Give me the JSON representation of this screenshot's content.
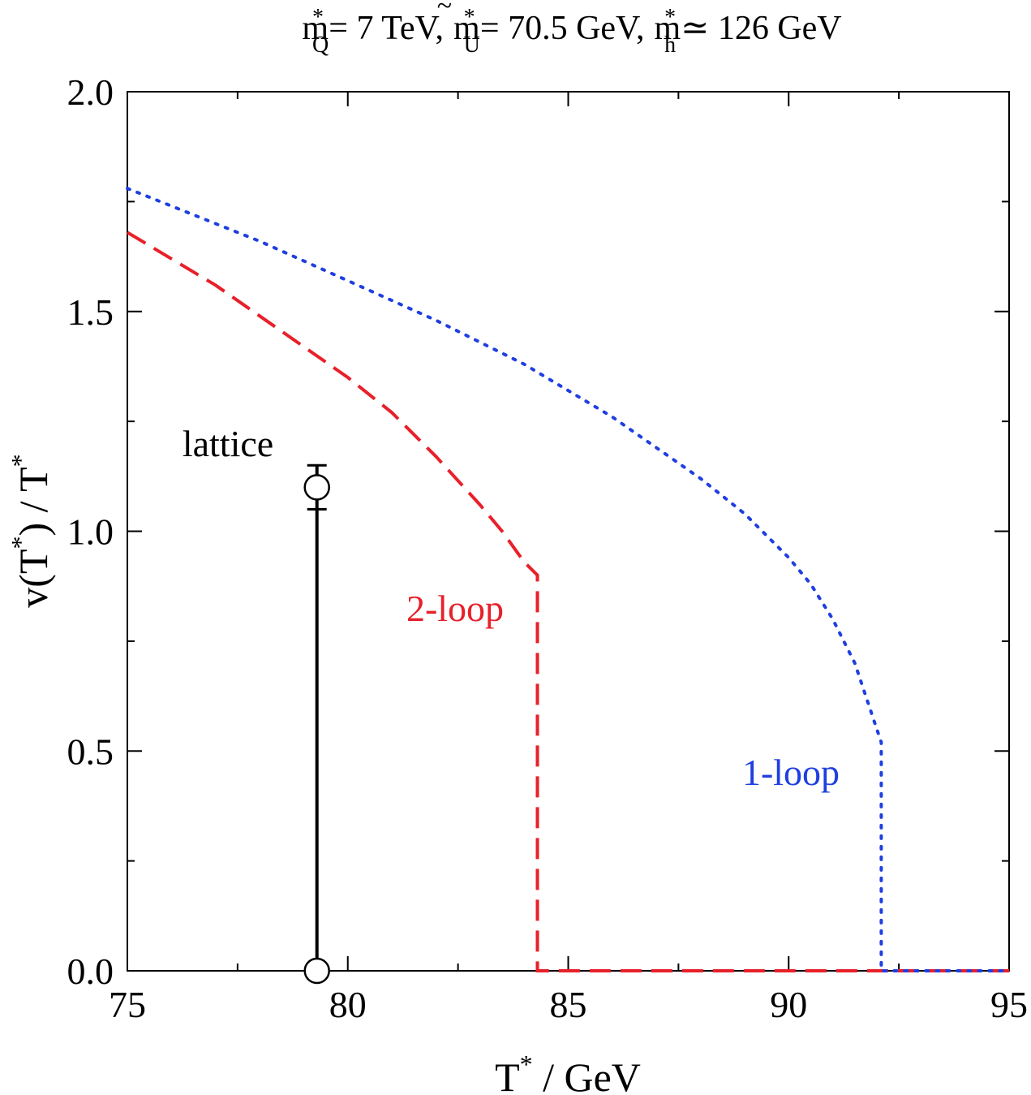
{
  "chart_data": {
    "type": "line",
    "title": {
      "m_q": "m",
      "m_q_sup": "*",
      "m_q_sub": "Q",
      "m_q_val": "= 7 TeV,",
      "m_u": "m",
      "m_u_accent": "~",
      "m_u_sup": "*",
      "m_u_sub": "U",
      "m_u_val": "= 70.5 GeV,",
      "m_h": "m",
      "m_h_sup": "*",
      "m_h_sub": "h",
      "m_h_val": "≃ 126 GeV"
    },
    "xlabel": {
      "base": "T",
      "sup": "*",
      "rest": " / GeV"
    },
    "ylabel": {
      "p1": "v(T",
      "sup1": "*",
      "p2": ") / T",
      "sup2": "*"
    },
    "xlim": [
      75,
      95
    ],
    "ylim": [
      0.0,
      2.0
    ],
    "x_ticks": [
      75,
      80,
      85,
      90,
      95
    ],
    "x_tick_labels": [
      "75",
      "80",
      "85",
      "90",
      "95"
    ],
    "x_minor_step": 2.5,
    "y_ticks": [
      0.0,
      0.5,
      1.0,
      1.5,
      2.0
    ],
    "y_tick_labels": [
      "0.0",
      "0.5",
      "1.0",
      "1.5",
      "2.0"
    ],
    "y_minor_step": 0.25,
    "grid": false,
    "series": [
      {
        "label": "2-loop",
        "color": "#e8202a",
        "style": "dashed",
        "x": [
          75.0,
          76.0,
          77.0,
          78.0,
          79.0,
          80.0,
          81.0,
          82.0,
          83.0,
          83.5,
          84.0,
          84.3,
          84.3,
          84.3,
          95.0
        ],
        "y": [
          1.68,
          1.62,
          1.56,
          1.49,
          1.42,
          1.35,
          1.27,
          1.17,
          1.06,
          1.0,
          0.93,
          0.9,
          0.9,
          0.0,
          0.0
        ]
      },
      {
        "label": "1-loop",
        "color": "#1f3fe0",
        "style": "dotted",
        "x": [
          75.0,
          76.0,
          78.0,
          80.0,
          82.0,
          84.0,
          86.0,
          88.0,
          89.0,
          90.0,
          90.5,
          91.0,
          91.5,
          92.0,
          92.1,
          92.1,
          95.0
        ],
        "y": [
          1.78,
          1.74,
          1.66,
          1.57,
          1.48,
          1.38,
          1.26,
          1.12,
          1.04,
          0.94,
          0.88,
          0.8,
          0.7,
          0.55,
          0.52,
          0.0,
          0.0
        ]
      }
    ],
    "lattice": {
      "label": "lattice",
      "color": "#000000",
      "x": 79.3,
      "y_low": 0.0,
      "y_high": 1.1,
      "err_plus": 0.05,
      "err_minus": 0.05
    },
    "annotations": {
      "two_loop": {
        "text": "2-loop",
        "color": "#e8202a"
      },
      "one_loop": {
        "text": "1-loop",
        "color": "#1f3fe0"
      },
      "lattice": {
        "text": "lattice",
        "color": "#000000"
      }
    }
  }
}
